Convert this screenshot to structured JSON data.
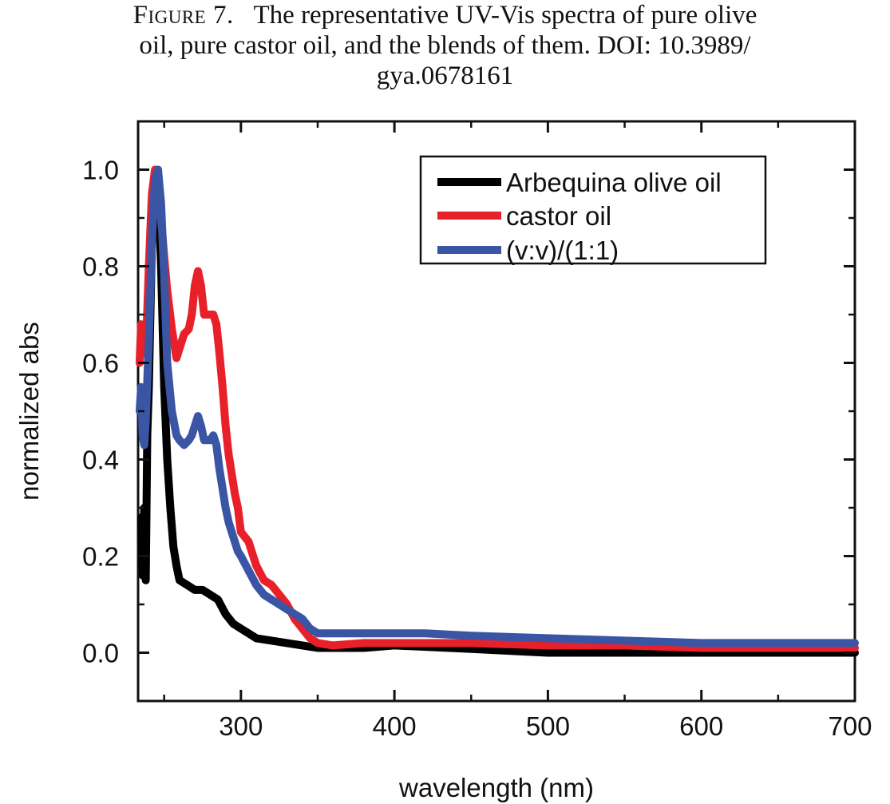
{
  "caption": {
    "figure_label": "Figure 7.",
    "line1_text": "The representative UV-Vis spectra of pure olive",
    "line2": "oil, pure castor oil, and the blends of them. DOI: 10.3989/",
    "line3": "gya.0678161"
  },
  "chart_data": {
    "type": "line",
    "title": "",
    "xlabel": "wavelength (nm)",
    "ylabel": "normalized abs",
    "xlim": [
      233,
      700
    ],
    "ylim": [
      -0.1,
      1.1
    ],
    "xticks": [
      300,
      400,
      500,
      600,
      700
    ],
    "yticks": [
      0.0,
      0.2,
      0.4,
      0.6,
      0.8,
      1.0
    ],
    "ytick_labels": [
      "0.0",
      "0.2",
      "0.4",
      "0.6",
      "0.8",
      "1.0"
    ],
    "legend_position": "top-right",
    "series": [
      {
        "name": "Arbequina olive oil",
        "color": "#000000",
        "x": [
          235,
          236,
          237,
          238,
          239,
          240,
          242,
          244,
          246,
          248,
          250,
          252,
          254,
          256,
          258,
          260,
          265,
          270,
          275,
          280,
          285,
          290,
          295,
          300,
          305,
          310,
          320,
          330,
          340,
          350,
          360,
          380,
          400,
          450,
          500,
          550,
          600,
          650,
          700
        ],
        "y": [
          0.28,
          0.16,
          0.3,
          0.15,
          0.45,
          0.55,
          0.85,
          0.98,
          0.96,
          0.8,
          0.55,
          0.4,
          0.3,
          0.22,
          0.18,
          0.15,
          0.14,
          0.13,
          0.13,
          0.12,
          0.11,
          0.08,
          0.06,
          0.05,
          0.04,
          0.03,
          0.025,
          0.02,
          0.015,
          0.01,
          0.01,
          0.01,
          0.015,
          0.008,
          0.0,
          0.0,
          0.0,
          0.0,
          0.0
        ]
      },
      {
        "name": "castor oil",
        "color": "#e8202a",
        "x": [
          234,
          235,
          236,
          238,
          240,
          242,
          244,
          246,
          248,
          250,
          252,
          255,
          258,
          260,
          263,
          266,
          268,
          270,
          272,
          274,
          276,
          278,
          280,
          282,
          284,
          286,
          288,
          290,
          292,
          294,
          296,
          298,
          300,
          305,
          310,
          315,
          320,
          325,
          330,
          335,
          340,
          345,
          350,
          360,
          380,
          400,
          450,
          500,
          550,
          600,
          650,
          700
        ],
        "y": [
          0.6,
          0.68,
          0.62,
          0.62,
          0.8,
          0.95,
          1.0,
          0.97,
          0.9,
          0.82,
          0.75,
          0.67,
          0.61,
          0.63,
          0.66,
          0.67,
          0.7,
          0.76,
          0.79,
          0.76,
          0.7,
          0.7,
          0.7,
          0.7,
          0.68,
          0.62,
          0.55,
          0.47,
          0.41,
          0.37,
          0.33,
          0.3,
          0.25,
          0.23,
          0.18,
          0.15,
          0.14,
          0.12,
          0.1,
          0.07,
          0.05,
          0.03,
          0.02,
          0.015,
          0.02,
          0.02,
          0.02,
          0.015,
          0.015,
          0.01,
          0.01,
          0.01
        ]
      },
      {
        "name": "(v:v)/(1:1)",
        "color": "#3b55a5",
        "x": [
          234,
          235,
          236,
          237,
          238,
          240,
          242,
          244,
          246,
          248,
          250,
          252,
          255,
          258,
          260,
          263,
          266,
          268,
          270,
          272,
          274,
          276,
          278,
          280,
          282,
          284,
          286,
          288,
          290,
          292,
          294,
          296,
          298,
          300,
          305,
          310,
          315,
          320,
          325,
          330,
          335,
          340,
          345,
          350,
          360,
          370,
          380,
          400,
          420,
          450,
          500,
          550,
          600,
          650,
          700
        ],
        "y": [
          0.5,
          0.55,
          0.45,
          0.43,
          0.48,
          0.65,
          0.85,
          0.98,
          1.0,
          0.93,
          0.78,
          0.6,
          0.5,
          0.45,
          0.44,
          0.43,
          0.44,
          0.45,
          0.47,
          0.49,
          0.47,
          0.44,
          0.44,
          0.44,
          0.45,
          0.43,
          0.38,
          0.34,
          0.3,
          0.27,
          0.25,
          0.23,
          0.21,
          0.2,
          0.17,
          0.14,
          0.12,
          0.11,
          0.1,
          0.09,
          0.08,
          0.07,
          0.05,
          0.04,
          0.04,
          0.04,
          0.04,
          0.04,
          0.04,
          0.035,
          0.03,
          0.025,
          0.02,
          0.02,
          0.02
        ]
      }
    ]
  }
}
